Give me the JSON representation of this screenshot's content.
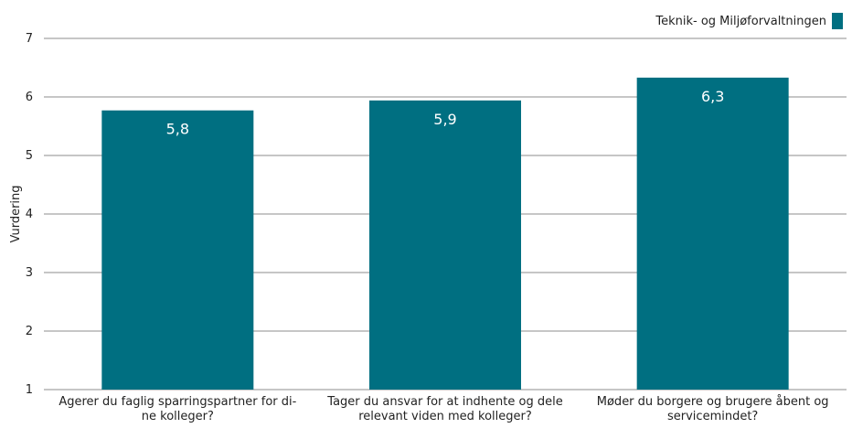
{
  "chart_data": {
    "type": "bar",
    "categories": [
      "Agerer du faglig sparringspartner for dine kolleger?",
      "Tager du ansvar for at indhente og dele relevant viden med kolleger?",
      "Møder du borgere og brugere åbent og servicemindet?"
    ],
    "category_lines": [
      [
        "Agerer du faglig sparringspartner for di-",
        "ne kolleger?"
      ],
      [
        "Tager du ansvar for at indhente og dele",
        "relevant viden med kolleger?"
      ],
      [
        "Møder du borgere og brugere åbent og",
        "servicemindet?"
      ]
    ],
    "series": [
      {
        "name": "Teknik- og Miljøforvaltningen",
        "values": [
          5.77,
          5.94,
          6.33
        ],
        "color": "#006f81"
      }
    ],
    "data_labels": [
      "5,8",
      "5,9",
      "6,3"
    ],
    "ylabel": "Vurdering",
    "ylim": [
      1,
      7
    ],
    "yticks": [
      "1",
      "2",
      "3",
      "4",
      "5",
      "6",
      "7"
    ],
    "grid": true,
    "legend_position": "top-right"
  }
}
